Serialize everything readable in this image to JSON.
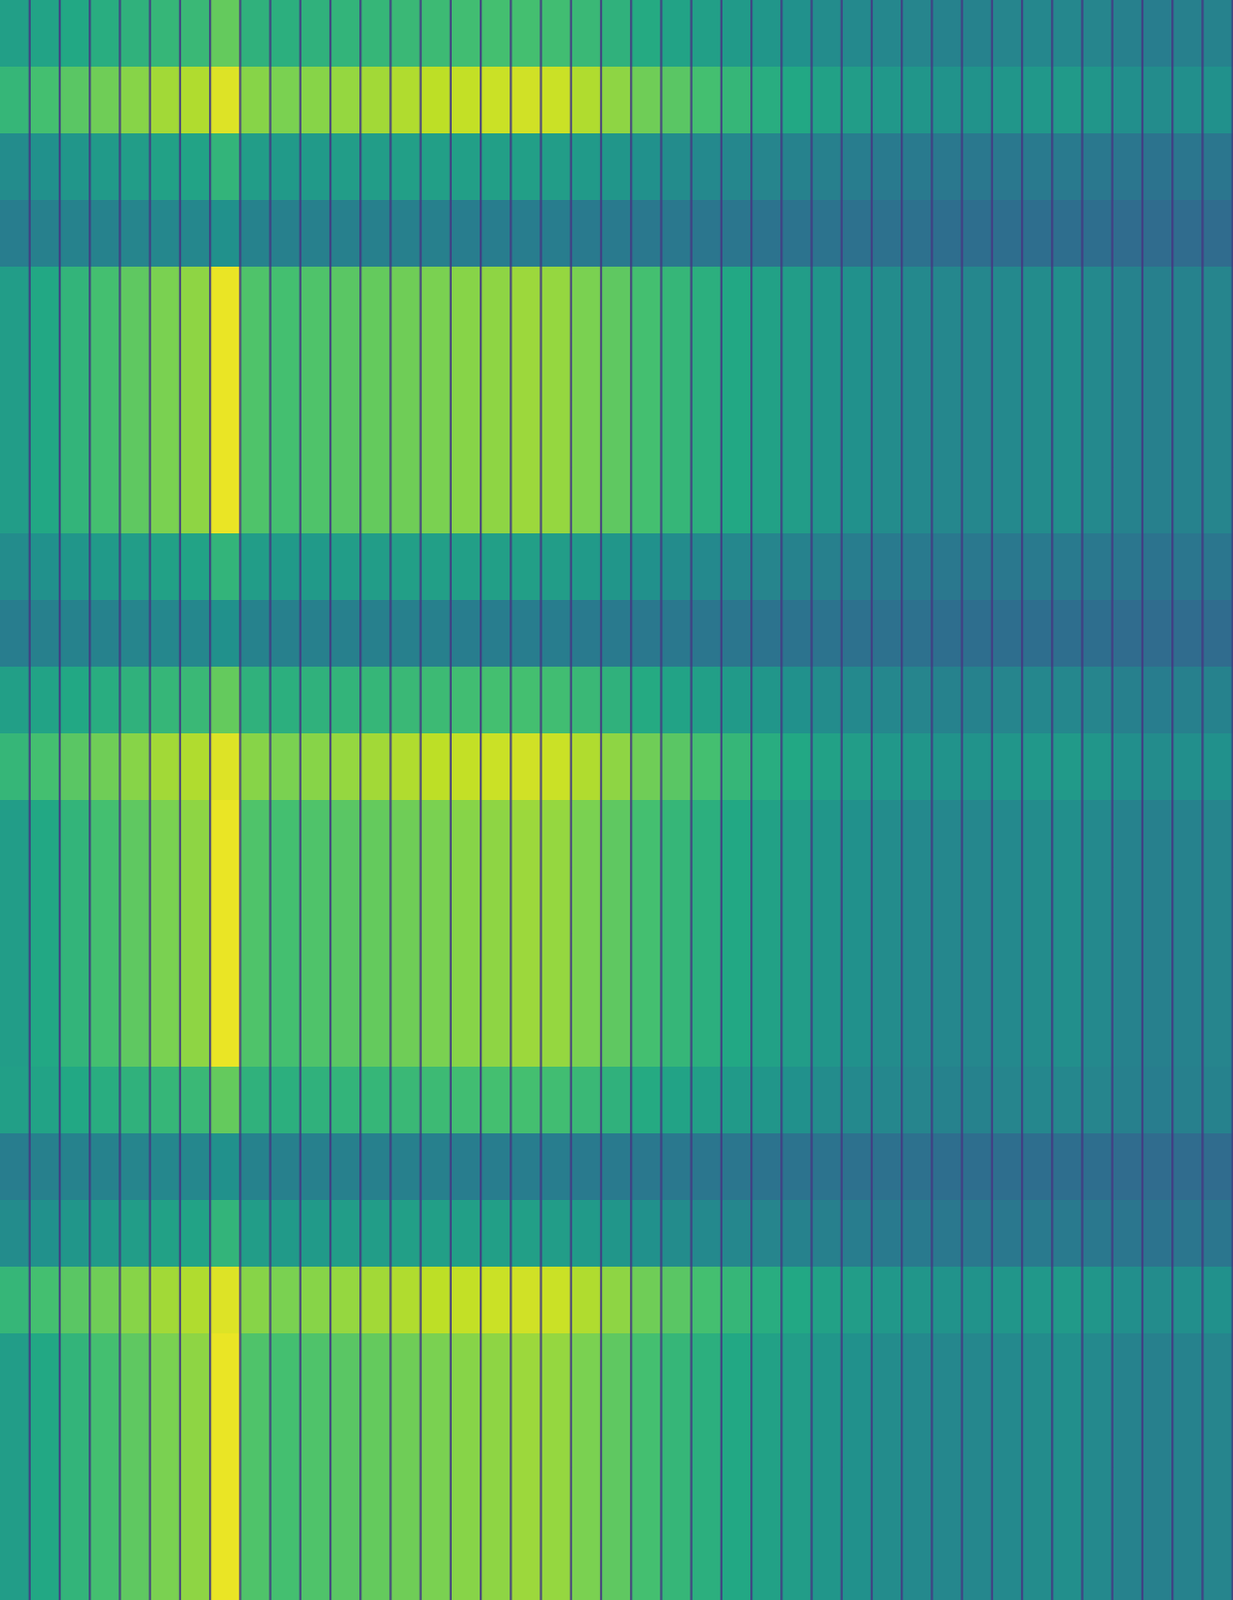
{
  "chart_data": {
    "type": "heatmap",
    "tick_labels": false,
    "color_range": [
      0,
      1
    ],
    "cells": [
      [
        0.56,
        0.58,
        0.6,
        0.62,
        0.64,
        0.66,
        0.67,
        0.76,
        0.64,
        0.63,
        0.64,
        0.65,
        0.66,
        0.67,
        0.68,
        0.69,
        0.7,
        0.7,
        0.69,
        0.67,
        0.64,
        0.61,
        0.58,
        0.56,
        0.54,
        0.52,
        0.5,
        0.48,
        0.47,
        0.46,
        0.45,
        0.44,
        0.44,
        0.45,
        0.46,
        0.46,
        0.45,
        0.43,
        0.42,
        0.43,
        0.44
      ],
      [
        0.66,
        0.7,
        0.74,
        0.78,
        0.82,
        0.86,
        0.88,
        0.95,
        0.82,
        0.8,
        0.82,
        0.84,
        0.86,
        0.88,
        0.9,
        0.91,
        0.92,
        0.93,
        0.92,
        0.88,
        0.83,
        0.78,
        0.74,
        0.7,
        0.66,
        0.62,
        0.6,
        0.57,
        0.55,
        0.53,
        0.52,
        0.51,
        0.51,
        0.52,
        0.53,
        0.54,
        0.52,
        0.49,
        0.48,
        0.49,
        0.5
      ],
      [
        0.48,
        0.5,
        0.52,
        0.54,
        0.55,
        0.57,
        0.58,
        0.65,
        0.55,
        0.54,
        0.54,
        0.55,
        0.55,
        0.56,
        0.56,
        0.56,
        0.56,
        0.56,
        0.55,
        0.54,
        0.52,
        0.5,
        0.48,
        0.47,
        0.46,
        0.45,
        0.44,
        0.43,
        0.42,
        0.41,
        0.41,
        0.4,
        0.4,
        0.4,
        0.41,
        0.41,
        0.4,
        0.39,
        0.38,
        0.39,
        0.39
      ],
      [
        0.42,
        0.43,
        0.44,
        0.44,
        0.45,
        0.46,
        0.46,
        0.5,
        0.44,
        0.43,
        0.43,
        0.43,
        0.43,
        0.43,
        0.43,
        0.42,
        0.42,
        0.42,
        0.42,
        0.41,
        0.41,
        0.4,
        0.4,
        0.39,
        0.39,
        0.38,
        0.38,
        0.38,
        0.37,
        0.37,
        0.37,
        0.36,
        0.36,
        0.36,
        0.36,
        0.36,
        0.36,
        0.35,
        0.35,
        0.35,
        0.35
      ],
      [
        0.55,
        0.6,
        0.65,
        0.7,
        0.75,
        0.8,
        0.83,
        0.97,
        0.72,
        0.7,
        0.72,
        0.74,
        0.76,
        0.78,
        0.8,
        0.82,
        0.83,
        0.85,
        0.84,
        0.8,
        0.75,
        0.7,
        0.66,
        0.63,
        0.6,
        0.57,
        0.55,
        0.52,
        0.5,
        0.48,
        0.47,
        0.46,
        0.46,
        0.47,
        0.48,
        0.49,
        0.47,
        0.44,
        0.43,
        0.44,
        0.45
      ],
      [
        0.55,
        0.6,
        0.65,
        0.7,
        0.75,
        0.8,
        0.83,
        0.97,
        0.72,
        0.7,
        0.72,
        0.74,
        0.76,
        0.78,
        0.8,
        0.82,
        0.83,
        0.85,
        0.84,
        0.8,
        0.75,
        0.7,
        0.66,
        0.63,
        0.6,
        0.57,
        0.55,
        0.52,
        0.5,
        0.48,
        0.47,
        0.46,
        0.46,
        0.47,
        0.48,
        0.49,
        0.47,
        0.44,
        0.43,
        0.44,
        0.45
      ],
      [
        0.55,
        0.6,
        0.65,
        0.7,
        0.75,
        0.8,
        0.83,
        0.97,
        0.72,
        0.7,
        0.72,
        0.74,
        0.76,
        0.78,
        0.8,
        0.82,
        0.83,
        0.85,
        0.84,
        0.8,
        0.75,
        0.7,
        0.66,
        0.63,
        0.6,
        0.57,
        0.55,
        0.52,
        0.5,
        0.48,
        0.47,
        0.46,
        0.46,
        0.47,
        0.48,
        0.49,
        0.47,
        0.44,
        0.43,
        0.44,
        0.45
      ],
      [
        0.55,
        0.6,
        0.65,
        0.7,
        0.75,
        0.8,
        0.83,
        0.97,
        0.72,
        0.7,
        0.72,
        0.74,
        0.76,
        0.78,
        0.8,
        0.82,
        0.83,
        0.85,
        0.84,
        0.8,
        0.75,
        0.7,
        0.66,
        0.63,
        0.6,
        0.57,
        0.55,
        0.52,
        0.5,
        0.48,
        0.47,
        0.46,
        0.46,
        0.47,
        0.48,
        0.49,
        0.47,
        0.44,
        0.43,
        0.44,
        0.45
      ],
      [
        0.48,
        0.5,
        0.52,
        0.54,
        0.55,
        0.57,
        0.58,
        0.65,
        0.55,
        0.54,
        0.54,
        0.55,
        0.55,
        0.56,
        0.56,
        0.56,
        0.56,
        0.56,
        0.55,
        0.54,
        0.52,
        0.5,
        0.48,
        0.47,
        0.46,
        0.45,
        0.44,
        0.43,
        0.42,
        0.41,
        0.41,
        0.4,
        0.4,
        0.4,
        0.41,
        0.41,
        0.4,
        0.39,
        0.38,
        0.39,
        0.39
      ],
      [
        0.42,
        0.43,
        0.44,
        0.44,
        0.45,
        0.46,
        0.46,
        0.5,
        0.44,
        0.43,
        0.43,
        0.43,
        0.43,
        0.43,
        0.43,
        0.42,
        0.42,
        0.42,
        0.42,
        0.41,
        0.41,
        0.4,
        0.4,
        0.39,
        0.39,
        0.38,
        0.38,
        0.38,
        0.37,
        0.37,
        0.37,
        0.36,
        0.36,
        0.36,
        0.36,
        0.36,
        0.36,
        0.35,
        0.35,
        0.35,
        0.35
      ],
      [
        0.56,
        0.58,
        0.6,
        0.62,
        0.64,
        0.66,
        0.67,
        0.76,
        0.64,
        0.63,
        0.64,
        0.65,
        0.66,
        0.67,
        0.68,
        0.69,
        0.7,
        0.7,
        0.69,
        0.67,
        0.64,
        0.61,
        0.58,
        0.56,
        0.54,
        0.52,
        0.5,
        0.48,
        0.47,
        0.46,
        0.45,
        0.44,
        0.44,
        0.45,
        0.46,
        0.46,
        0.45,
        0.43,
        0.42,
        0.43,
        0.44
      ],
      [
        0.66,
        0.7,
        0.74,
        0.78,
        0.82,
        0.86,
        0.88,
        0.95,
        0.82,
        0.8,
        0.82,
        0.84,
        0.86,
        0.88,
        0.9,
        0.91,
        0.92,
        0.93,
        0.92,
        0.88,
        0.83,
        0.78,
        0.74,
        0.7,
        0.66,
        0.62,
        0.6,
        0.57,
        0.55,
        0.53,
        0.52,
        0.51,
        0.51,
        0.52,
        0.53,
        0.54,
        0.52,
        0.49,
        0.48,
        0.49,
        0.5
      ],
      [
        0.55,
        0.6,
        0.65,
        0.7,
        0.75,
        0.8,
        0.83,
        0.97,
        0.72,
        0.7,
        0.72,
        0.74,
        0.76,
        0.78,
        0.8,
        0.82,
        0.83,
        0.85,
        0.84,
        0.8,
        0.75,
        0.7,
        0.66,
        0.63,
        0.6,
        0.57,
        0.55,
        0.52,
        0.5,
        0.48,
        0.47,
        0.46,
        0.46,
        0.47,
        0.48,
        0.49,
        0.47,
        0.44,
        0.43,
        0.44,
        0.45
      ],
      [
        0.55,
        0.6,
        0.65,
        0.7,
        0.75,
        0.8,
        0.83,
        0.97,
        0.72,
        0.7,
        0.72,
        0.74,
        0.76,
        0.78,
        0.8,
        0.82,
        0.83,
        0.85,
        0.84,
        0.8,
        0.75,
        0.7,
        0.66,
        0.63,
        0.6,
        0.57,
        0.55,
        0.52,
        0.5,
        0.48,
        0.47,
        0.46,
        0.46,
        0.47,
        0.48,
        0.49,
        0.47,
        0.44,
        0.43,
        0.44,
        0.45
      ],
      [
        0.55,
        0.6,
        0.65,
        0.7,
        0.75,
        0.8,
        0.83,
        0.97,
        0.72,
        0.7,
        0.72,
        0.74,
        0.76,
        0.78,
        0.8,
        0.82,
        0.83,
        0.85,
        0.84,
        0.8,
        0.75,
        0.7,
        0.66,
        0.63,
        0.6,
        0.57,
        0.55,
        0.52,
        0.5,
        0.48,
        0.47,
        0.46,
        0.46,
        0.47,
        0.48,
        0.49,
        0.47,
        0.44,
        0.43,
        0.44,
        0.45
      ],
      [
        0.55,
        0.6,
        0.65,
        0.7,
        0.75,
        0.8,
        0.83,
        0.97,
        0.72,
        0.7,
        0.72,
        0.74,
        0.76,
        0.78,
        0.8,
        0.82,
        0.83,
        0.85,
        0.84,
        0.8,
        0.75,
        0.7,
        0.66,
        0.63,
        0.6,
        0.57,
        0.55,
        0.52,
        0.5,
        0.48,
        0.47,
        0.46,
        0.46,
        0.47,
        0.48,
        0.49,
        0.47,
        0.44,
        0.43,
        0.44,
        0.45
      ],
      [
        0.56,
        0.58,
        0.6,
        0.62,
        0.64,
        0.66,
        0.67,
        0.76,
        0.64,
        0.63,
        0.64,
        0.65,
        0.66,
        0.67,
        0.68,
        0.69,
        0.7,
        0.7,
        0.69,
        0.67,
        0.64,
        0.61,
        0.58,
        0.56,
        0.54,
        0.52,
        0.5,
        0.48,
        0.47,
        0.46,
        0.45,
        0.44,
        0.44,
        0.45,
        0.46,
        0.46,
        0.45,
        0.43,
        0.42,
        0.43,
        0.44
      ],
      [
        0.42,
        0.43,
        0.44,
        0.44,
        0.45,
        0.46,
        0.46,
        0.5,
        0.44,
        0.43,
        0.43,
        0.43,
        0.43,
        0.43,
        0.43,
        0.42,
        0.42,
        0.42,
        0.42,
        0.41,
        0.41,
        0.4,
        0.4,
        0.39,
        0.39,
        0.38,
        0.38,
        0.38,
        0.37,
        0.37,
        0.37,
        0.36,
        0.36,
        0.36,
        0.36,
        0.36,
        0.36,
        0.35,
        0.35,
        0.35,
        0.35
      ],
      [
        0.48,
        0.5,
        0.52,
        0.54,
        0.55,
        0.57,
        0.58,
        0.65,
        0.55,
        0.54,
        0.54,
        0.55,
        0.55,
        0.56,
        0.56,
        0.56,
        0.56,
        0.56,
        0.55,
        0.54,
        0.52,
        0.5,
        0.48,
        0.47,
        0.46,
        0.45,
        0.44,
        0.43,
        0.42,
        0.41,
        0.41,
        0.4,
        0.4,
        0.4,
        0.41,
        0.41,
        0.4,
        0.39,
        0.38,
        0.39,
        0.39
      ],
      [
        0.66,
        0.7,
        0.74,
        0.78,
        0.82,
        0.86,
        0.88,
        0.95,
        0.82,
        0.8,
        0.82,
        0.84,
        0.86,
        0.88,
        0.9,
        0.91,
        0.92,
        0.93,
        0.92,
        0.88,
        0.83,
        0.78,
        0.74,
        0.7,
        0.66,
        0.62,
        0.6,
        0.57,
        0.55,
        0.53,
        0.52,
        0.51,
        0.51,
        0.52,
        0.53,
        0.54,
        0.52,
        0.49,
        0.48,
        0.49,
        0.5
      ],
      [
        0.55,
        0.6,
        0.65,
        0.7,
        0.75,
        0.8,
        0.83,
        0.97,
        0.72,
        0.7,
        0.72,
        0.74,
        0.76,
        0.78,
        0.8,
        0.82,
        0.83,
        0.85,
        0.84,
        0.8,
        0.75,
        0.7,
        0.66,
        0.63,
        0.6,
        0.57,
        0.55,
        0.52,
        0.5,
        0.48,
        0.47,
        0.46,
        0.46,
        0.47,
        0.48,
        0.49,
        0.47,
        0.44,
        0.43,
        0.44,
        0.45
      ],
      [
        0.55,
        0.6,
        0.65,
        0.7,
        0.75,
        0.8,
        0.83,
        0.97,
        0.72,
        0.7,
        0.72,
        0.74,
        0.76,
        0.78,
        0.8,
        0.82,
        0.83,
        0.85,
        0.84,
        0.8,
        0.75,
        0.7,
        0.66,
        0.63,
        0.6,
        0.57,
        0.55,
        0.52,
        0.5,
        0.48,
        0.47,
        0.46,
        0.46,
        0.47,
        0.48,
        0.49,
        0.47,
        0.44,
        0.43,
        0.44,
        0.45
      ],
      [
        0.55,
        0.6,
        0.65,
        0.7,
        0.75,
        0.8,
        0.83,
        0.97,
        0.72,
        0.7,
        0.72,
        0.74,
        0.76,
        0.78,
        0.8,
        0.82,
        0.83,
        0.85,
        0.84,
        0.8,
        0.75,
        0.7,
        0.66,
        0.63,
        0.6,
        0.57,
        0.55,
        0.52,
        0.5,
        0.48,
        0.47,
        0.46,
        0.46,
        0.47,
        0.48,
        0.49,
        0.47,
        0.44,
        0.43,
        0.44,
        0.45
      ],
      [
        0.55,
        0.6,
        0.65,
        0.7,
        0.75,
        0.8,
        0.83,
        0.97,
        0.72,
        0.7,
        0.72,
        0.74,
        0.76,
        0.78,
        0.8,
        0.82,
        0.83,
        0.85,
        0.84,
        0.8,
        0.75,
        0.7,
        0.66,
        0.63,
        0.6,
        0.57,
        0.55,
        0.52,
        0.5,
        0.48,
        0.47,
        0.46,
        0.46,
        0.47,
        0.48,
        0.49,
        0.47,
        0.44,
        0.43,
        0.44,
        0.45
      ]
    ]
  }
}
